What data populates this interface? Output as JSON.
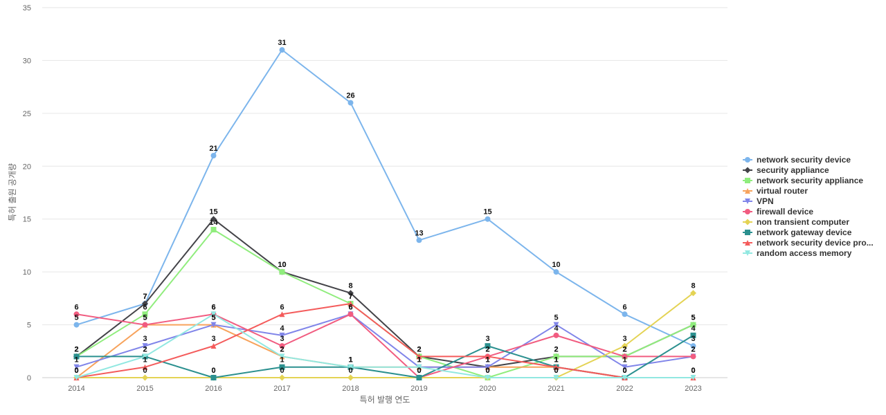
{
  "chart_data": {
    "type": "line",
    "title": "",
    "xlabel": "특허 발행 연도",
    "ylabel": "특허 출원 공개량",
    "ylim": [
      0,
      35
    ],
    "yticks": [
      0,
      5,
      10,
      15,
      20,
      25,
      30,
      35
    ],
    "grid": true,
    "legend_position": "right",
    "x": [
      "2014",
      "2015",
      "2016",
      "2017",
      "2018",
      "2019",
      "2020",
      "2021",
      "2022",
      "2023"
    ],
    "series": [
      {
        "name": "network security device",
        "color": "#7cb5ec",
        "marker": "circle",
        "values": [
          5,
          7,
          21,
          31,
          26,
          13,
          15,
          10,
          6,
          3
        ]
      },
      {
        "name": "security appliance",
        "color": "#434348",
        "marker": "diamond",
        "values": [
          2,
          7,
          15,
          10,
          8,
          2,
          1,
          2,
          2,
          5
        ]
      },
      {
        "name": "network security appliance",
        "color": "#90ed7d",
        "marker": "square",
        "values": [
          2,
          6,
          14,
          10,
          7,
          2,
          0,
          2,
          2,
          5
        ]
      },
      {
        "name": "virtual router",
        "color": "#f7a35c",
        "marker": "triangle",
        "values": [
          0,
          5,
          5,
          2,
          1,
          1,
          1,
          1,
          0,
          0
        ]
      },
      {
        "name": "VPN",
        "color": "#8085e9",
        "marker": "triangle-down",
        "values": [
          1,
          3,
          5,
          4,
          6,
          1,
          1,
          5,
          1,
          2
        ]
      },
      {
        "name": "firewall device",
        "color": "#f15c80",
        "marker": "circle",
        "values": [
          6,
          5,
          6,
          3,
          6,
          0,
          2,
          4,
          2,
          2
        ]
      },
      {
        "name": "non transient computer",
        "color": "#e4d354",
        "marker": "diamond",
        "values": [
          0,
          0,
          0,
          0,
          0,
          0,
          0,
          0,
          3,
          8
        ]
      },
      {
        "name": "network gateway device",
        "color": "#2b908f",
        "marker": "square",
        "values": [
          2,
          2,
          0,
          1,
          1,
          0,
          3,
          1,
          0,
          4
        ]
      },
      {
        "name": "network security device pro...",
        "color": "#f45b5b",
        "marker": "triangle",
        "values": [
          0,
          1,
          3,
          6,
          7,
          2,
          2,
          1,
          0,
          0
        ]
      },
      {
        "name": "random access memory",
        "color": "#91e8e1",
        "marker": "triangle-down",
        "values": [
          0,
          2,
          6,
          2,
          1,
          1,
          0,
          0,
          0,
          0
        ]
      }
    ]
  }
}
